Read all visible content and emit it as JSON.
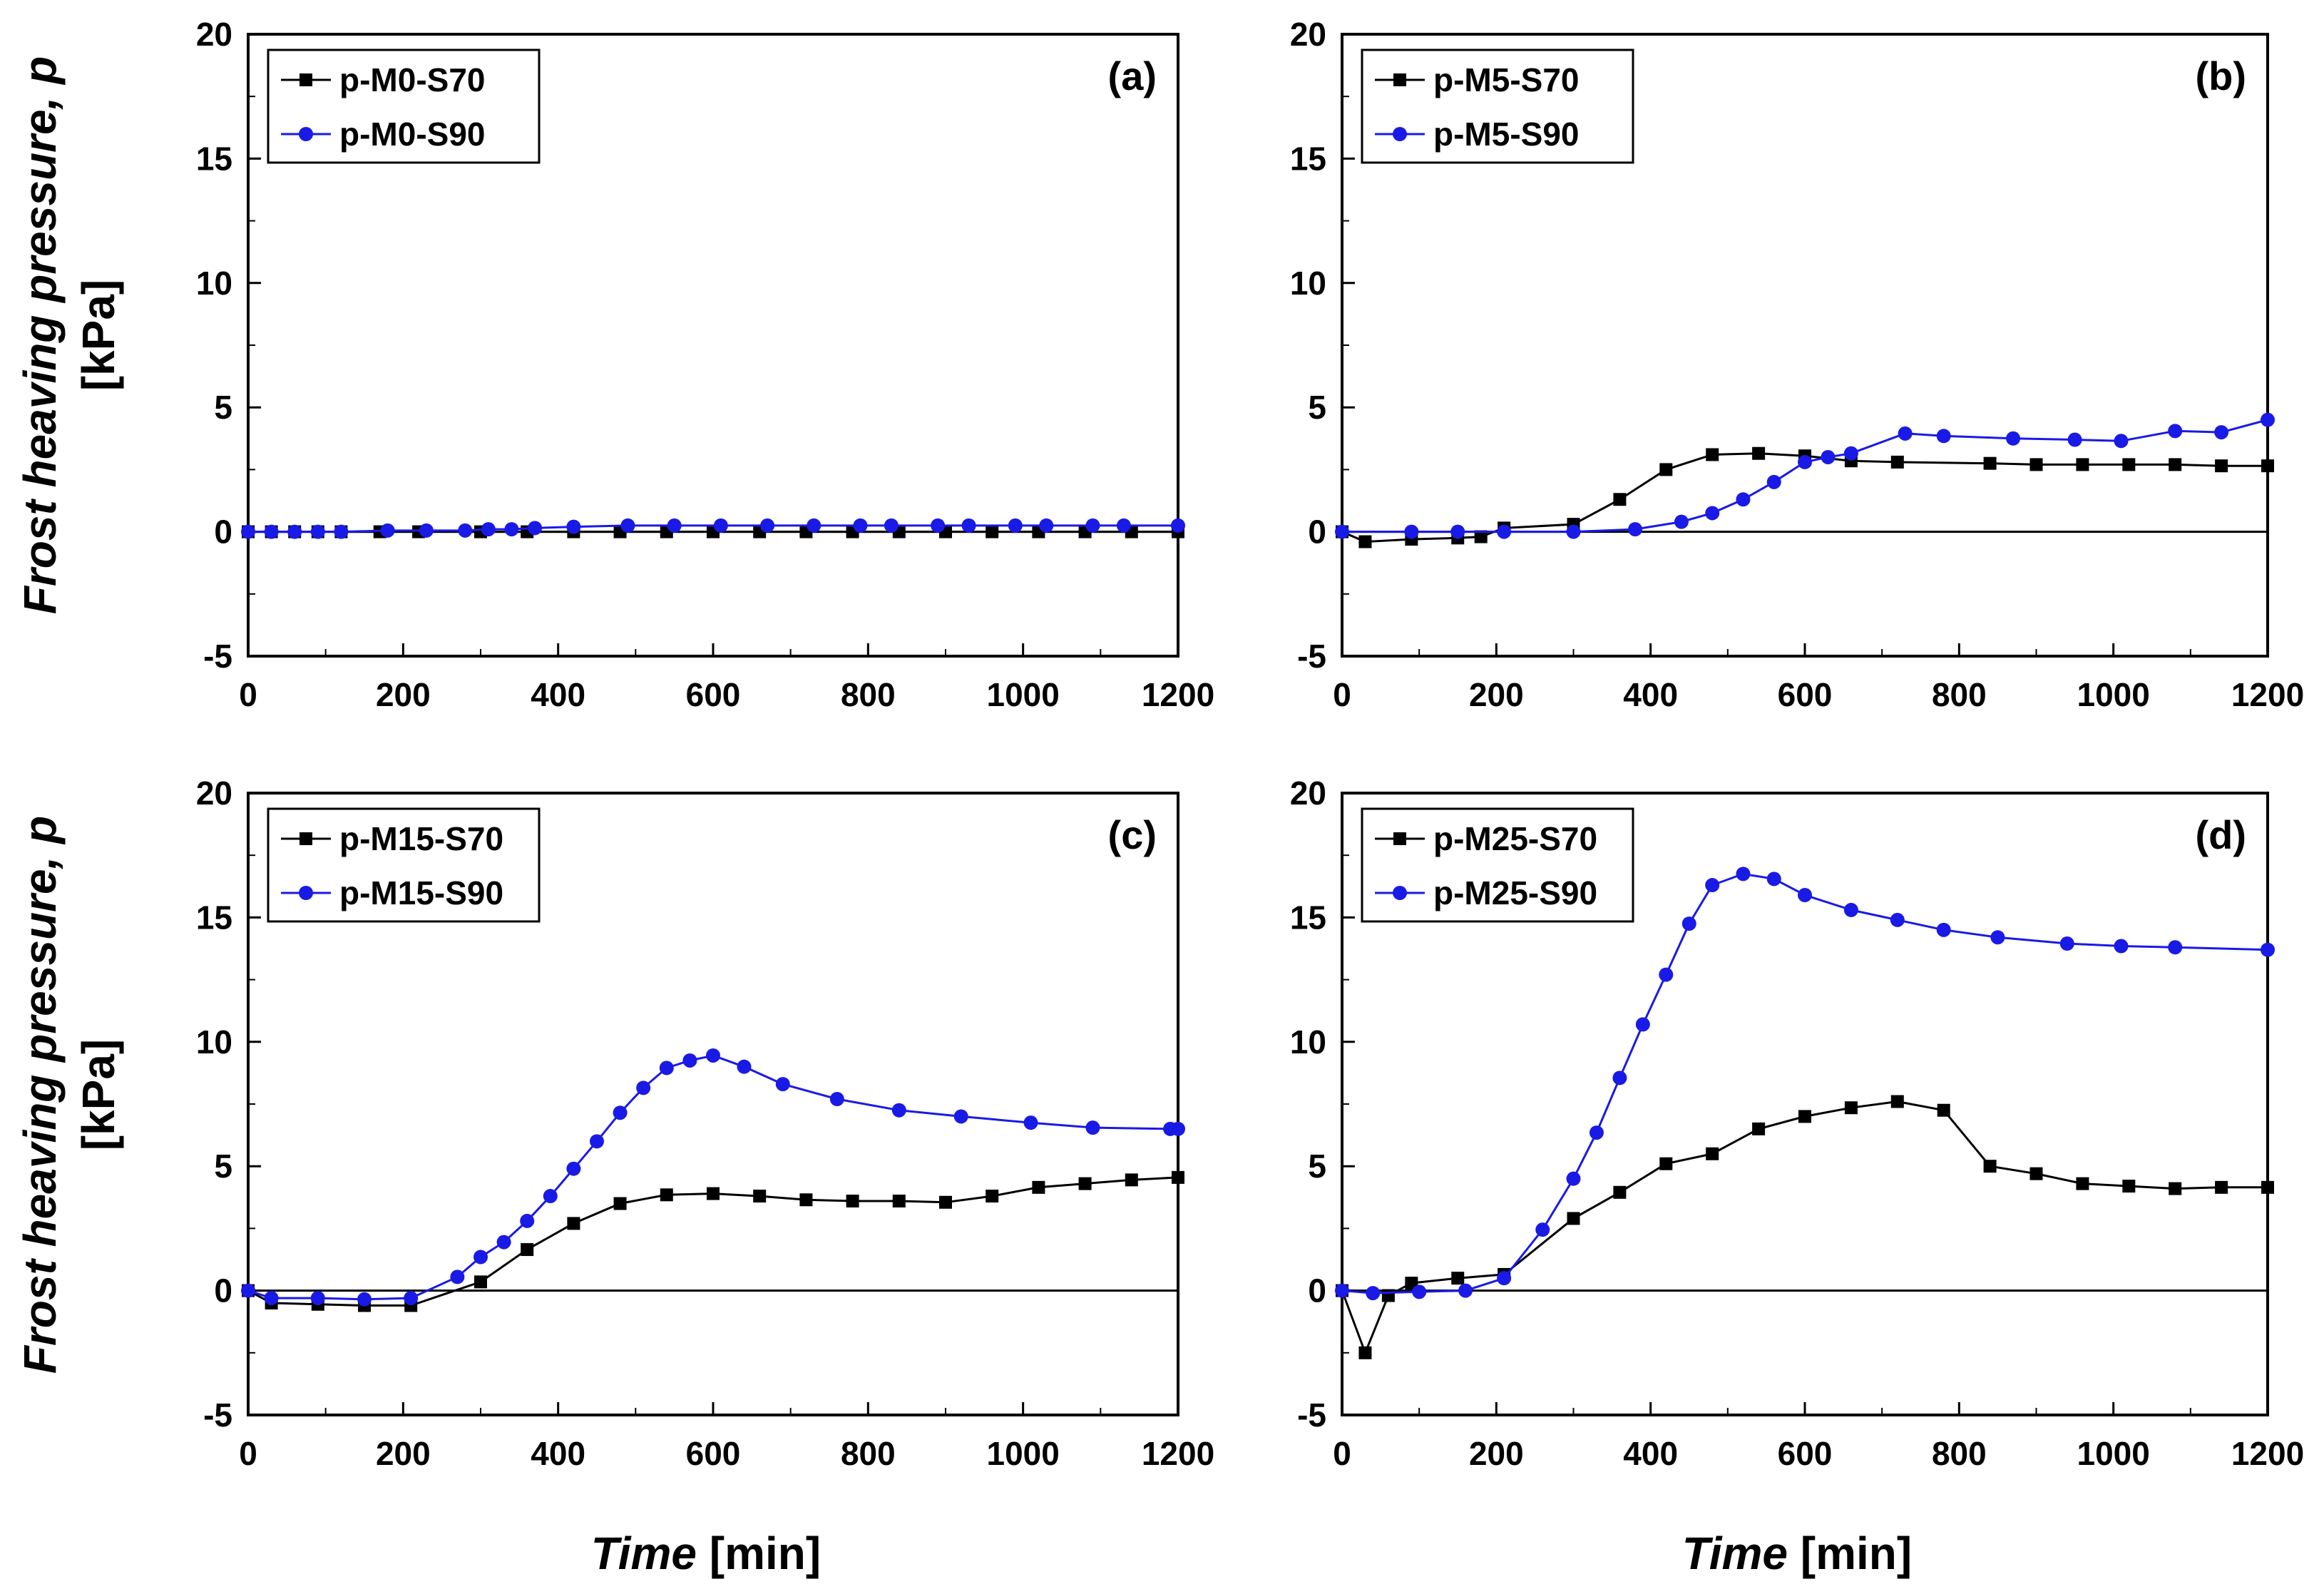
{
  "figure": {
    "ylabel_line1": "Frost heaving pressure, p",
    "ylabel_line2": "[kPa]",
    "xlabel_italic": "Time",
    "xlabel_unit": " [min]"
  },
  "colors": {
    "s70": "#000000",
    "s90": "#1a1ae6"
  },
  "chart_data": [
    {
      "type": "line",
      "panel": "(a)",
      "xlim": [
        0,
        1200
      ],
      "ylim": [
        -5,
        20
      ],
      "xticks": [
        "0",
        "200",
        "400",
        "600",
        "800",
        "1000",
        "1200"
      ],
      "yticks": [
        "-5",
        "0",
        "5",
        "10",
        "15",
        "20"
      ],
      "legend": "top-left",
      "series": [
        {
          "name": "p-M0-S70",
          "marker": "square",
          "x": [
            0,
            30,
            60,
            90,
            120,
            170,
            220,
            300,
            360,
            420,
            480,
            540,
            600,
            660,
            720,
            780,
            840,
            900,
            960,
            1020,
            1080,
            1140,
            1200
          ],
          "y": [
            0,
            0,
            0,
            0,
            0,
            0,
            0,
            0,
            0,
            0,
            0,
            0,
            0,
            0,
            0,
            0,
            0,
            0,
            0,
            0,
            0,
            0,
            0
          ]
        },
        {
          "name": "p-M0-S90",
          "marker": "circle",
          "x": [
            0,
            30,
            60,
            90,
            120,
            180,
            230,
            280,
            310,
            340,
            370,
            420,
            490,
            550,
            610,
            670,
            730,
            790,
            830,
            890,
            930,
            990,
            1030,
            1090,
            1130,
            1200
          ],
          "y": [
            0,
            0,
            0,
            0,
            0,
            0.05,
            0.05,
            0.05,
            0.1,
            0.1,
            0.15,
            0.2,
            0.25,
            0.25,
            0.25,
            0.25,
            0.25,
            0.25,
            0.25,
            0.25,
            0.25,
            0.25,
            0.25,
            0.25,
            0.25,
            0.25
          ]
        }
      ]
    },
    {
      "type": "line",
      "panel": "(b)",
      "xlim": [
        0,
        1200
      ],
      "ylim": [
        -5,
        20
      ],
      "xticks": [
        "0",
        "200",
        "400",
        "600",
        "800",
        "1000",
        "1200"
      ],
      "yticks": [
        "-5",
        "0",
        "5",
        "10",
        "15",
        "20"
      ],
      "legend": "top-left",
      "series": [
        {
          "name": "p-M5-S70",
          "marker": "square",
          "x": [
            0,
            30,
            90,
            150,
            180,
            210,
            300,
            360,
            420,
            480,
            540,
            600,
            660,
            720,
            840,
            900,
            960,
            1020,
            1080,
            1140,
            1200
          ],
          "y": [
            0,
            -0.4,
            -0.3,
            -0.25,
            -0.2,
            0.15,
            0.3,
            1.3,
            2.5,
            3.1,
            3.15,
            3.05,
            2.85,
            2.8,
            2.75,
            2.7,
            2.7,
            2.7,
            2.7,
            2.65,
            2.65
          ]
        },
        {
          "name": "p-M5-S90",
          "marker": "circle",
          "x": [
            0,
            90,
            150,
            210,
            300,
            380,
            440,
            480,
            520,
            560,
            600,
            630,
            660,
            730,
            780,
            870,
            950,
            1010,
            1080,
            1140,
            1200
          ],
          "y": [
            0,
            0,
            0,
            0,
            0,
            0.1,
            0.4,
            0.75,
            1.3,
            2.0,
            2.8,
            3.0,
            3.15,
            3.95,
            3.85,
            3.75,
            3.7,
            3.65,
            4.05,
            4.0,
            4.5
          ]
        }
      ]
    },
    {
      "type": "line",
      "panel": "(c)",
      "xlim": [
        0,
        1200
      ],
      "ylim": [
        -5,
        20
      ],
      "xticks": [
        "0",
        "200",
        "400",
        "600",
        "800",
        "1000",
        "1200"
      ],
      "yticks": [
        "-5",
        "0",
        "5",
        "10",
        "15",
        "20"
      ],
      "legend": "top-left",
      "series": [
        {
          "name": "p-M15-S70",
          "marker": "square",
          "x": [
            0,
            30,
            90,
            150,
            210,
            300,
            360,
            420,
            480,
            540,
            600,
            660,
            720,
            780,
            840,
            900,
            960,
            1020,
            1080,
            1140,
            1200
          ],
          "y": [
            0,
            -0.5,
            -0.55,
            -0.6,
            -0.6,
            0.35,
            1.65,
            2.7,
            3.5,
            3.85,
            3.9,
            3.8,
            3.65,
            3.6,
            3.6,
            3.55,
            3.8,
            4.15,
            4.3,
            4.45,
            4.55
          ]
        },
        {
          "name": "p-M15-S90",
          "marker": "circle",
          "x": [
            0,
            30,
            90,
            150,
            210,
            270,
            300,
            330,
            360,
            390,
            420,
            450,
            480,
            510,
            540,
            570,
            600,
            640,
            690,
            760,
            840,
            920,
            1010,
            1090,
            1190,
            1200
          ],
          "y": [
            0,
            -0.3,
            -0.3,
            -0.35,
            -0.3,
            0.55,
            1.35,
            1.95,
            2.8,
            3.8,
            4.9,
            6.0,
            7.15,
            8.15,
            8.95,
            9.25,
            9.45,
            9.0,
            8.3,
            7.7,
            7.25,
            7.0,
            6.75,
            6.55,
            6.5,
            6.5
          ]
        }
      ]
    },
    {
      "type": "line",
      "panel": "(d)",
      "xlim": [
        0,
        1200
      ],
      "ylim": [
        -5,
        20
      ],
      "xticks": [
        "0",
        "200",
        "400",
        "600",
        "800",
        "1000",
        "1200"
      ],
      "yticks": [
        "-5",
        "0",
        "5",
        "10",
        "15",
        "20"
      ],
      "legend": "top-left",
      "series": [
        {
          "name": "p-M25-S70",
          "marker": "square",
          "x": [
            0,
            30,
            60,
            90,
            150,
            210,
            300,
            360,
            420,
            480,
            540,
            600,
            660,
            720,
            780,
            840,
            900,
            960,
            1020,
            1080,
            1140,
            1200
          ],
          "y": [
            0,
            -2.5,
            -0.2,
            0.3,
            0.5,
            0.65,
            2.9,
            3.95,
            5.1,
            5.5,
            6.5,
            7.0,
            7.35,
            7.6,
            7.25,
            5.0,
            4.7,
            4.3,
            4.2,
            4.1,
            4.15,
            4.15
          ]
        },
        {
          "name": "p-M25-S90",
          "marker": "circle",
          "x": [
            0,
            40,
            100,
            160,
            210,
            260,
            300,
            330,
            360,
            390,
            420,
            450,
            480,
            520,
            560,
            600,
            660,
            720,
            780,
            850,
            940,
            1010,
            1080,
            1200
          ],
          "y": [
            0,
            -0.1,
            -0.05,
            0,
            0.5,
            2.45,
            4.5,
            6.35,
            8.55,
            10.7,
            12.7,
            14.75,
            16.3,
            16.75,
            16.55,
            15.9,
            15.3,
            14.9,
            14.5,
            14.2,
            13.95,
            13.85,
            13.8,
            13.7
          ]
        }
      ]
    }
  ]
}
